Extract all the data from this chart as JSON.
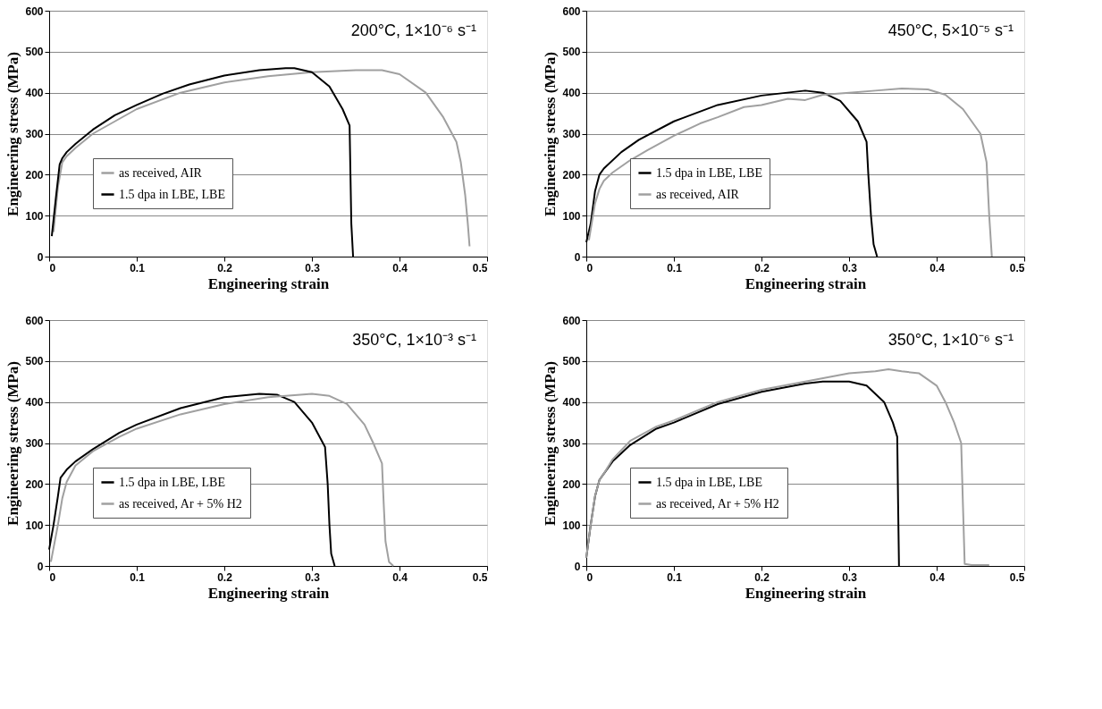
{
  "chart_data": [
    {
      "type": "line",
      "xlabel": "Engineering strain",
      "ylabel": "Engineering stress (MPa)",
      "annotations": [
        "200°C, 1×10⁻⁶ s⁻¹"
      ],
      "xlim": [
        0,
        0.5
      ],
      "ylim": [
        0,
        600
      ],
      "xticks": [
        0,
        0.1,
        0.2,
        0.3,
        0.4,
        0.5
      ],
      "yticks": [
        0,
        100,
        200,
        300,
        400,
        500,
        600
      ],
      "grid": "y",
      "legend": "bottom left",
      "marker": "none",
      "line_style": "solid",
      "series": [
        {
          "name": "as received, AIR",
          "color": "#a0a0a0",
          "x": [
            0.005,
            0.01,
            0.015,
            0.02,
            0.03,
            0.05,
            0.1,
            0.15,
            0.2,
            0.25,
            0.3,
            0.35,
            0.38,
            0.4,
            0.43,
            0.45,
            0.465,
            0.47,
            0.475,
            0.478,
            0.48
          ],
          "values": [
            60,
            170,
            230,
            245,
            265,
            300,
            360,
            400,
            425,
            440,
            450,
            455,
            455,
            445,
            400,
            340,
            280,
            230,
            150,
            80,
            25
          ]
        },
        {
          "name": "1.5 dpa in LBE, LBE",
          "color": "#000000",
          "x": [
            0.003,
            0.008,
            0.012,
            0.015,
            0.02,
            0.03,
            0.05,
            0.075,
            0.1,
            0.13,
            0.16,
            0.2,
            0.24,
            0.27,
            0.28,
            0.3,
            0.32,
            0.335,
            0.343,
            0.344,
            0.345,
            0.347
          ],
          "values": [
            50,
            150,
            225,
            240,
            255,
            275,
            310,
            345,
            370,
            398,
            420,
            442,
            455,
            460,
            460,
            450,
            415,
            360,
            320,
            200,
            80,
            0
          ]
        }
      ]
    },
    {
      "type": "line",
      "xlabel": "Engineering strain",
      "ylabel": "Engineering stress (MPa)",
      "annotations": [
        "450°C, 5×10⁻⁵ s⁻¹"
      ],
      "xlim": [
        0,
        0.5
      ],
      "ylim": [
        0,
        600
      ],
      "xticks": [
        0,
        0.1,
        0.2,
        0.3,
        0.4,
        0.5
      ],
      "yticks": [
        0,
        100,
        200,
        300,
        400,
        500,
        600
      ],
      "grid": "y",
      "legend": "bottom left",
      "marker": "none",
      "line_style": "solid",
      "series": [
        {
          "name": "1.5 dpa in LBE, LBE",
          "color": "#000000",
          "x": [
            0,
            0.005,
            0.01,
            0.015,
            0.02,
            0.04,
            0.06,
            0.1,
            0.15,
            0.2,
            0.25,
            0.27,
            0.29,
            0.31,
            0.32,
            0.322,
            0.325,
            0.328,
            0.332
          ],
          "values": [
            35,
            80,
            160,
            200,
            215,
            255,
            285,
            330,
            370,
            393,
            405,
            400,
            380,
            330,
            280,
            200,
            100,
            30,
            0
          ]
        },
        {
          "name": "as received, AIR",
          "color": "#a0a0a0",
          "x": [
            0.003,
            0.01,
            0.015,
            0.02,
            0.03,
            0.05,
            0.07,
            0.1,
            0.13,
            0.15,
            0.18,
            0.2,
            0.23,
            0.25,
            0.27,
            0.3,
            0.33,
            0.36,
            0.39,
            0.41,
            0.43,
            0.45,
            0.457,
            0.46,
            0.463
          ],
          "values": [
            40,
            130,
            165,
            185,
            205,
            235,
            260,
            295,
            325,
            340,
            365,
            370,
            385,
            382,
            395,
            400,
            405,
            410,
            408,
            395,
            360,
            300,
            230,
            100,
            0
          ]
        }
      ]
    },
    {
      "type": "line",
      "xlabel": "Engineering strain",
      "ylabel": "Engineering stress (MPa)",
      "annotations": [
        "350°C, 1×10⁻³ s⁻¹"
      ],
      "xlim": [
        0,
        0.5
      ],
      "ylim": [
        0,
        600
      ],
      "xticks": [
        0,
        0.1,
        0.2,
        0.3,
        0.4,
        0.5
      ],
      "yticks": [
        0,
        100,
        200,
        300,
        400,
        500,
        600
      ],
      "grid": "y",
      "legend": "bottom left",
      "marker": "none",
      "line_style": "solid",
      "series": [
        {
          "name": "1.5 dpa in LBE, LBE",
          "color": "#000000",
          "x": [
            0,
            0.005,
            0.01,
            0.013,
            0.02,
            0.03,
            0.05,
            0.08,
            0.1,
            0.15,
            0.2,
            0.24,
            0.26,
            0.28,
            0.3,
            0.315,
            0.318,
            0.32,
            0.322,
            0.326
          ],
          "values": [
            40,
            100,
            170,
            215,
            235,
            255,
            285,
            325,
            345,
            385,
            412,
            420,
            418,
            400,
            350,
            290,
            200,
            100,
            30,
            0
          ]
        },
        {
          "name": "as received, Ar + 5% H2",
          "color": "#a0a0a0",
          "x": [
            0.002,
            0.01,
            0.015,
            0.02,
            0.03,
            0.05,
            0.08,
            0.1,
            0.15,
            0.2,
            0.25,
            0.3,
            0.32,
            0.34,
            0.36,
            0.37,
            0.38,
            0.382,
            0.384,
            0.388,
            0.393
          ],
          "values": [
            10,
            100,
            165,
            205,
            245,
            280,
            315,
            335,
            370,
            395,
            412,
            420,
            415,
            395,
            345,
            300,
            250,
            150,
            60,
            10,
            0
          ]
        }
      ]
    },
    {
      "type": "line",
      "xlabel": "Engineering strain",
      "ylabel": "Engineering stress (MPa)",
      "annotations": [
        "350°C, 1×10⁻⁶ s⁻¹"
      ],
      "xlim": [
        0,
        0.5
      ],
      "ylim": [
        0,
        600
      ],
      "xticks": [
        0,
        0.1,
        0.2,
        0.3,
        0.4,
        0.5
      ],
      "yticks": [
        0,
        100,
        200,
        300,
        400,
        500,
        600
      ],
      "grid": "y",
      "legend": "bottom left",
      "marker": "none",
      "line_style": "solid",
      "series": [
        {
          "name": "1.5 dpa in LBE, LBE",
          "color": "#000000",
          "x": [
            0,
            0.005,
            0.01,
            0.015,
            0.02,
            0.03,
            0.05,
            0.08,
            0.1,
            0.15,
            0.2,
            0.25,
            0.27,
            0.3,
            0.32,
            0.34,
            0.35,
            0.355,
            0.356,
            0.357
          ],
          "values": [
            20,
            100,
            170,
            210,
            225,
            255,
            295,
            335,
            350,
            395,
            425,
            445,
            450,
            450,
            440,
            400,
            350,
            315,
            150,
            0
          ]
        },
        {
          "name": "as received, Ar + 5% H2",
          "color": "#a0a0a0",
          "x": [
            0,
            0.005,
            0.01,
            0.015,
            0.02,
            0.03,
            0.05,
            0.08,
            0.1,
            0.15,
            0.2,
            0.25,
            0.3,
            0.33,
            0.345,
            0.36,
            0.38,
            0.4,
            0.41,
            0.42,
            0.428,
            0.43,
            0.432,
            0.44,
            0.46
          ],
          "values": [
            20,
            100,
            170,
            210,
            225,
            260,
            305,
            340,
            355,
            400,
            430,
            450,
            470,
            475,
            480,
            475,
            470,
            440,
            400,
            350,
            300,
            150,
            5,
            2,
            2
          ]
        }
      ]
    }
  ]
}
